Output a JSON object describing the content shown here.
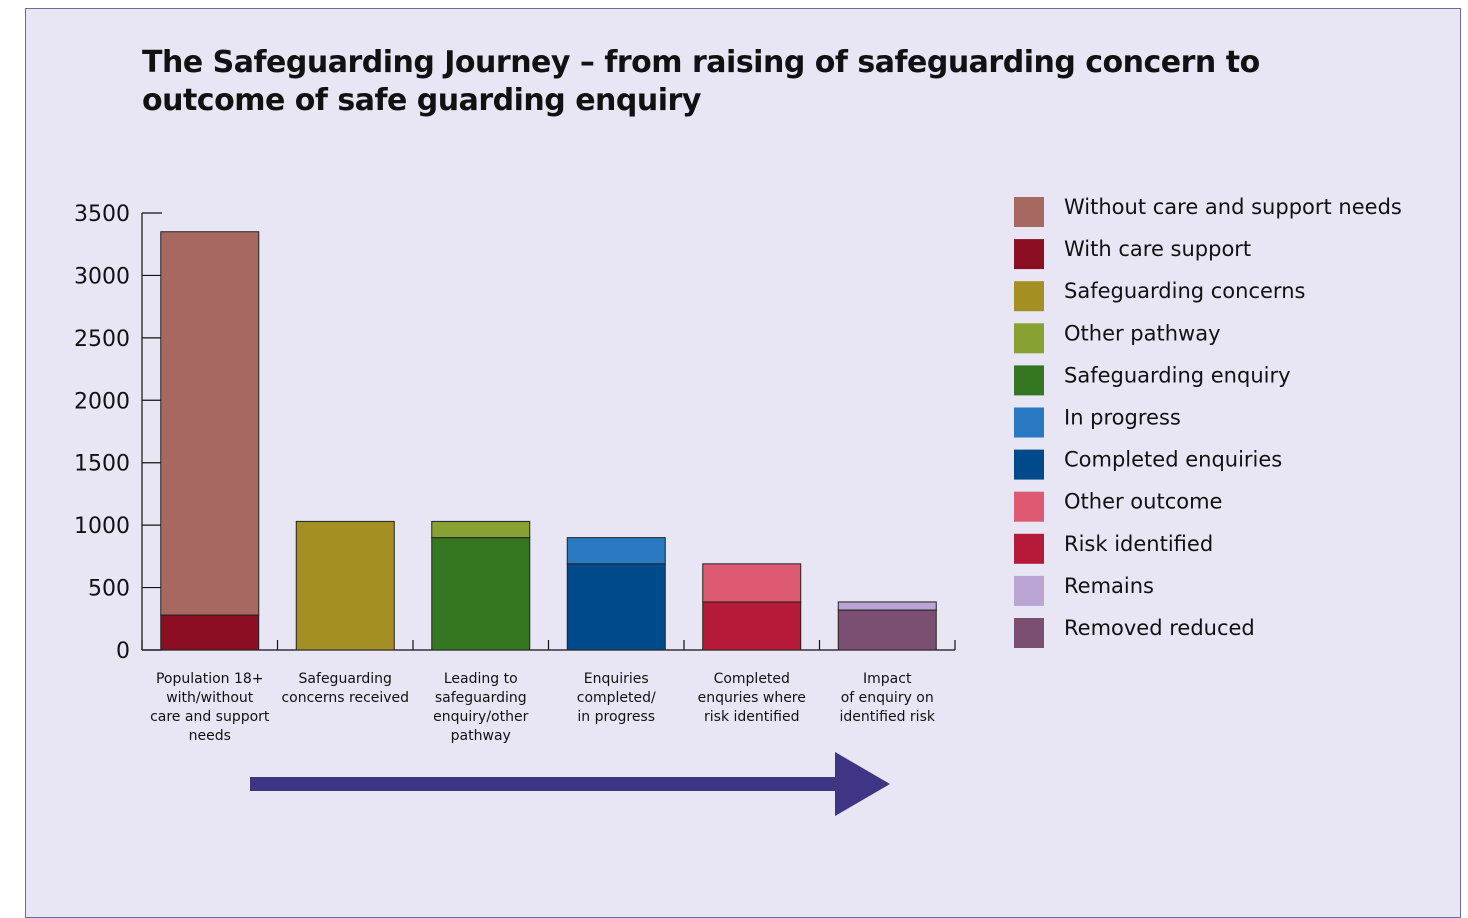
{
  "chart_data": {
    "type": "stacked-bar",
    "title": "The Safeguarding Journey – from raising of safeguarding concern to outcome of safe guarding enquiry",
    "categories": [
      "Population 18+\nwith/without\ncare and support\nneeds",
      "Safeguarding\nconcerns received",
      "Leading to\nsafeguarding\nenquiry/other\npathway",
      "Enquiries\ncompleted/\nin progress",
      "Completed\nenquries where\nrisk identified",
      "Impact\nof enquiry on\nidentified risk"
    ],
    "series": [
      {
        "name": "Without care and support needs",
        "color": "#a86862",
        "values": [
          3070,
          null,
          null,
          null,
          null,
          null
        ]
      },
      {
        "name": "With care support",
        "color": "#8b0e22",
        "values": [
          280,
          null,
          null,
          null,
          null,
          null
        ]
      },
      {
        "name": "Safeguarding concerns",
        "color": "#a38f22",
        "values": [
          null,
          1030,
          null,
          null,
          null,
          null
        ]
      },
      {
        "name": "Other pathway",
        "color": "#87a232",
        "values": [
          null,
          null,
          130,
          null,
          null,
          null
        ]
      },
      {
        "name": "Safeguarding enquiry",
        "color": "#347622",
        "values": [
          null,
          null,
          900,
          null,
          null,
          null
        ]
      },
      {
        "name": "In progress",
        "color": "#2878c2",
        "values": [
          null,
          null,
          null,
          210,
          null,
          null
        ]
      },
      {
        "name": "Completed enquiries",
        "color": "#004a8c",
        "values": [
          null,
          null,
          null,
          690,
          null,
          null
        ]
      },
      {
        "name": "Other outcome",
        "color": "#dd5a72",
        "values": [
          null,
          null,
          null,
          null,
          305,
          null
        ]
      },
      {
        "name": "Risk identified",
        "color": "#b51a38",
        "values": [
          null,
          null,
          null,
          null,
          385,
          null
        ]
      },
      {
        "name": "Remains",
        "color": "#bba5d4",
        "values": [
          null,
          null,
          null,
          null,
          null,
          65
        ]
      },
      {
        "name": "Removed reduced",
        "color": "#7b4f72",
        "values": [
          null,
          null,
          null,
          null,
          null,
          320
        ]
      }
    ],
    "ylim": [
      0,
      3500
    ],
    "yticks": [
      0,
      500,
      1000,
      1500,
      2000,
      2500,
      3000,
      3500
    ],
    "legend": "right"
  }
}
